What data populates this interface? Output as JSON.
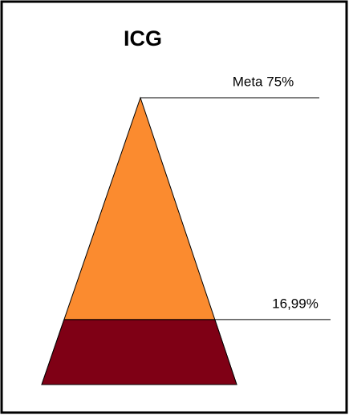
{
  "chart_data": {
    "type": "pyramid",
    "title": "ICG",
    "target": 75,
    "target_label": "Meta 75%",
    "value": 16.99,
    "value_label": "16,99%",
    "color": "#fb8b2f",
    "fill_color": "#7f0015"
  }
}
